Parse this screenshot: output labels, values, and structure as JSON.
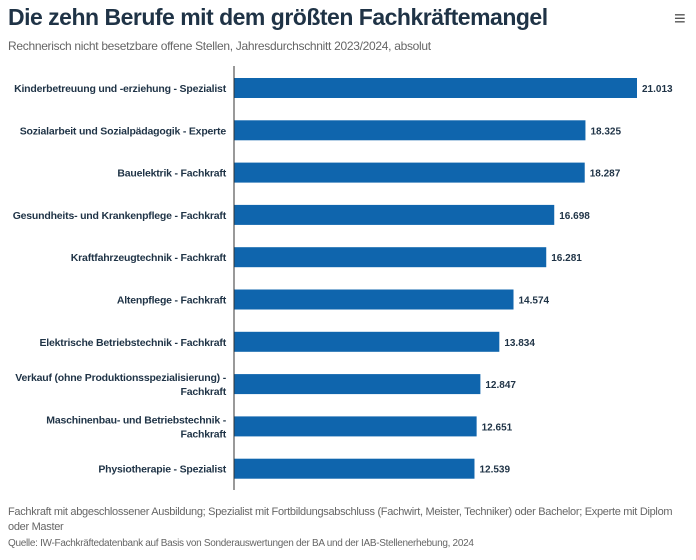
{
  "chart_data": {
    "type": "bar",
    "orientation": "horizontal",
    "title": "Die zehn Berufe mit dem größten Fachkräftemangel",
    "subtitle": "Rechnerisch nicht besetzbare offene Stellen, Jahresdurchschnitt 2023/2024, absolut",
    "categories": [
      [
        "Kinderbetreuung und -erziehung - Spezialist"
      ],
      [
        "Sozialarbeit und Sozialpädagogik - Experte"
      ],
      [
        "Bauelektrik - Fachkraft"
      ],
      [
        "Gesundheits- und Krankenpflege - Fachkraft"
      ],
      [
        "Kraftfahrzeugtechnik - Fachkraft"
      ],
      [
        "Altenpflege - Fachkraft"
      ],
      [
        "Elektrische Betriebstechnik - Fachkraft"
      ],
      [
        "Verkauf (ohne Produktionsspezialisierung) -",
        "Fachkraft"
      ],
      [
        "Maschinenbau- und Betriebstechnik -",
        "Fachkraft"
      ],
      [
        "Physiotherapie - Spezialist"
      ]
    ],
    "values": [
      21013,
      18325,
      18287,
      16698,
      16281,
      14574,
      13834,
      12847,
      12651,
      12539
    ],
    "value_labels": [
      "21.013",
      "18.325",
      "18.287",
      "16.698",
      "16.281",
      "14.574",
      "13.834",
      "12.847",
      "12.651",
      "12.539"
    ],
    "xlim": [
      0,
      21013
    ],
    "grid": false,
    "color": "#0f65ad",
    "note": "Fachkraft mit abgeschlossener Ausbildung; Spezialist mit Fortbildungsabschluss (Fachwirt, Meister, Techniker) oder Bachelor; Experte mit Diplom oder Master",
    "source": "Quelle: IW-Fachkräftedatenbank auf Basis von Sonderauswertungen der BA und der IAB-Stellenerhebung, 2024"
  },
  "menu": {
    "icon": "hamburger-menu-icon",
    "glyph": "≡"
  }
}
